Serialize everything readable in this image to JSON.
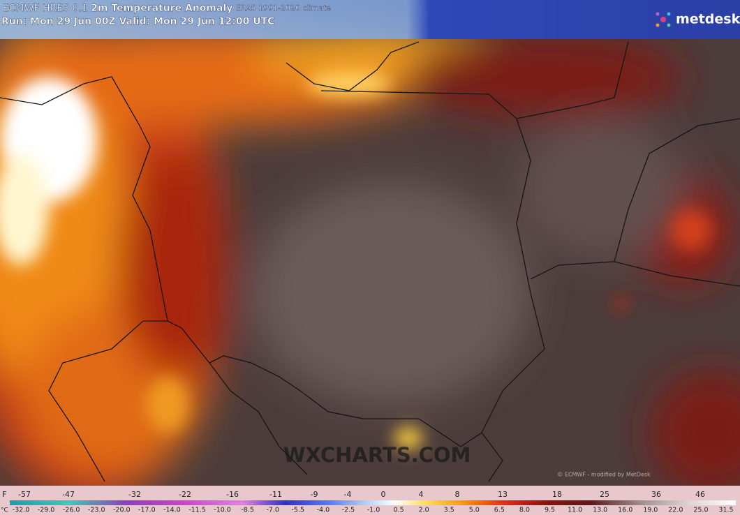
{
  "header": {
    "model": "ECMWF HRES 0.1",
    "title": "2m Temperature Anomaly",
    "climate": "ERA5 1991-2020 climate",
    "run": "Run: Mon 29 Jun 00Z Valid: Mon 29 Jun 12:00 UTC",
    "logo": "metdesk"
  },
  "map": {
    "watermark": "WXCHARTS.COM",
    "credit": "© ECMWF - modified by MetDesk"
  },
  "legend": {
    "f_unit": "F",
    "f_labels": [
      "-57",
      "-47",
      "-32",
      "-22",
      "-16",
      "-11",
      "-9",
      "-4",
      "0",
      "4",
      "8",
      "13",
      "18",
      "25",
      "36",
      "46"
    ],
    "c_unit": "°C",
    "c_labels": [
      "-32.0",
      "-29.0",
      "-26.0",
      "-23.0",
      "-20.0",
      "-17.0",
      "-14.0",
      "-11.5",
      "-10.0",
      "-8.5",
      "-7.0",
      "-5.5",
      "-4.0",
      "-2.5",
      "-1.0",
      "0.5",
      "2.0",
      "3.5",
      "5.0",
      "6.5",
      "8.0",
      "9.5",
      "11.0",
      "13.0",
      "16.0",
      "19.0",
      "22.0",
      "25.0",
      "31.5"
    ]
  }
}
